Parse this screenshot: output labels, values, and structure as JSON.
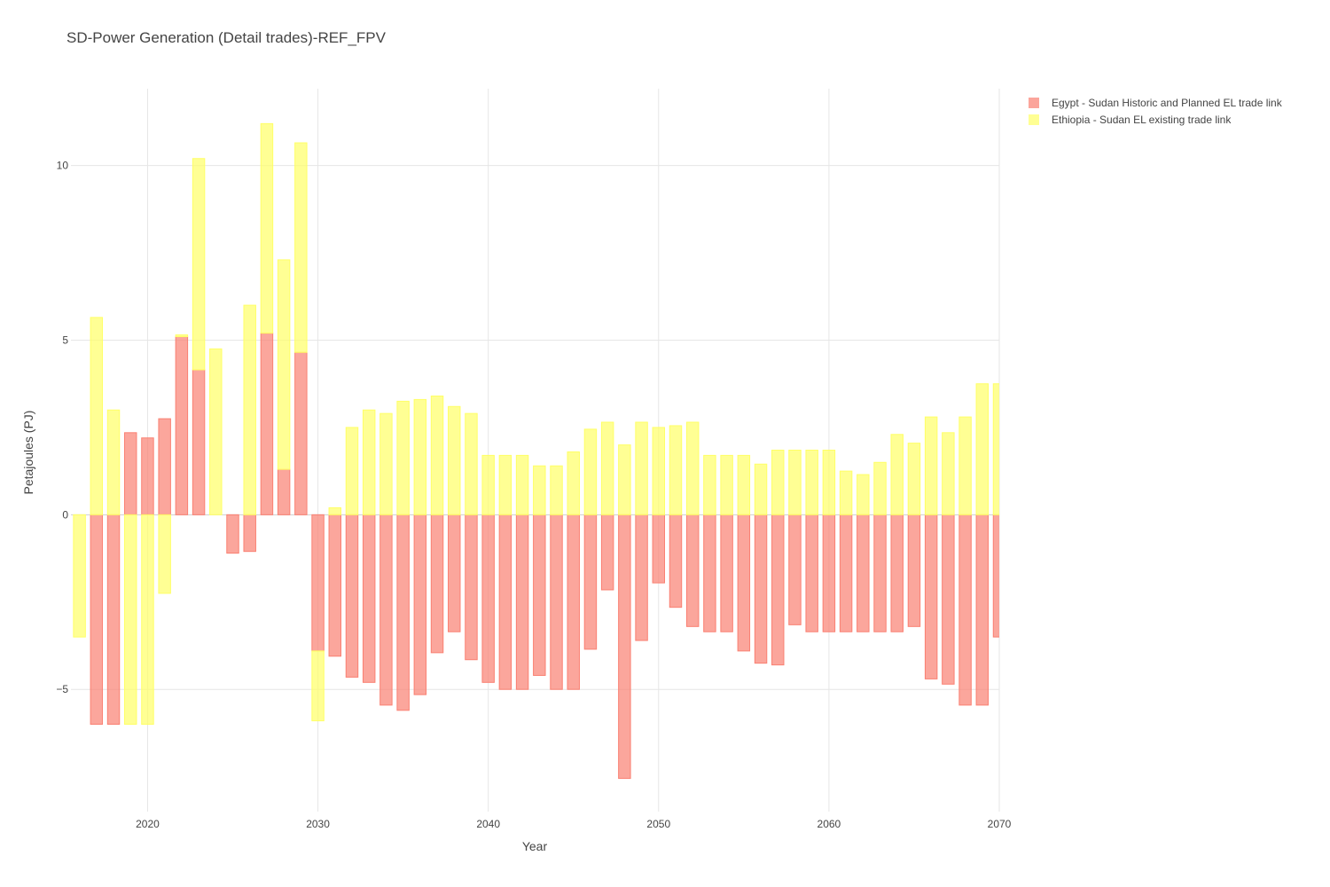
{
  "chart_data": {
    "type": "bar",
    "barmode": "relative",
    "title": "SD-Power Generation (Detail trades)-REF_FPV",
    "xlabel": "Year",
    "ylabel": "Petajoules (PJ)",
    "xlim": [
      2015.5,
      2070
    ],
    "ylim": [
      -8.5,
      12.2
    ],
    "x_ticks": [
      2020,
      2030,
      2040,
      2050,
      2060,
      2070
    ],
    "y_ticks": [
      -5,
      0,
      5,
      10
    ],
    "grid": true,
    "legend_position": "top-right",
    "x": [
      2016,
      2017,
      2018,
      2019,
      2020,
      2021,
      2022,
      2023,
      2024,
      2025,
      2026,
      2027,
      2028,
      2029,
      2030,
      2031,
      2032,
      2033,
      2034,
      2035,
      2036,
      2037,
      2038,
      2039,
      2040,
      2041,
      2042,
      2043,
      2044,
      2045,
      2046,
      2047,
      2048,
      2049,
      2050,
      2051,
      2052,
      2053,
      2054,
      2055,
      2056,
      2057,
      2058,
      2059,
      2060,
      2061,
      2062,
      2063,
      2064,
      2065,
      2066,
      2067,
      2068,
      2069,
      2070
    ],
    "series": [
      {
        "name": "Egypt - Sudan Historic and Planned EL trade link",
        "color": "#fa8072",
        "values": [
          0,
          -6.0,
          -6.0,
          2.35,
          2.2,
          2.75,
          5.1,
          4.15,
          0,
          -1.1,
          -1.05,
          5.2,
          1.3,
          4.65,
          -3.9,
          -4.05,
          -4.65,
          -4.8,
          -5.45,
          -5.6,
          -5.15,
          -3.95,
          -3.35,
          -4.15,
          -4.8,
          -5.0,
          -5.0,
          -4.6,
          -5.0,
          -5.0,
          -3.85,
          -2.15,
          -7.55,
          -3.6,
          -1.95,
          -2.65,
          -3.2,
          -3.35,
          -3.35,
          -3.9,
          -4.25,
          -4.3,
          -3.15,
          -3.35,
          -3.35,
          -3.35,
          -3.35,
          -3.35,
          -3.35,
          -3.2,
          -4.7,
          -4.85,
          -5.45,
          -5.45,
          -3.5
        ]
      },
      {
        "name": "Ethiopia - Sudan EL existing trade link",
        "color": "#ffff66",
        "values": [
          -3.5,
          5.65,
          3.0,
          -6.0,
          -6.0,
          -2.25,
          0.05,
          6.05,
          4.75,
          0,
          6.0,
          6.0,
          6.0,
          6.0,
          -2.0,
          0.2,
          2.5,
          3.0,
          2.9,
          3.25,
          3.3,
          3.4,
          3.1,
          2.9,
          1.7,
          1.7,
          1.7,
          1.4,
          1.4,
          1.8,
          2.45,
          2.65,
          2.0,
          2.65,
          2.5,
          2.55,
          2.65,
          1.7,
          1.7,
          1.7,
          1.45,
          1.85,
          1.85,
          1.85,
          1.85,
          1.25,
          1.15,
          1.5,
          2.3,
          2.05,
          2.8,
          2.35,
          2.8,
          3.75,
          3.75
        ]
      }
    ]
  }
}
